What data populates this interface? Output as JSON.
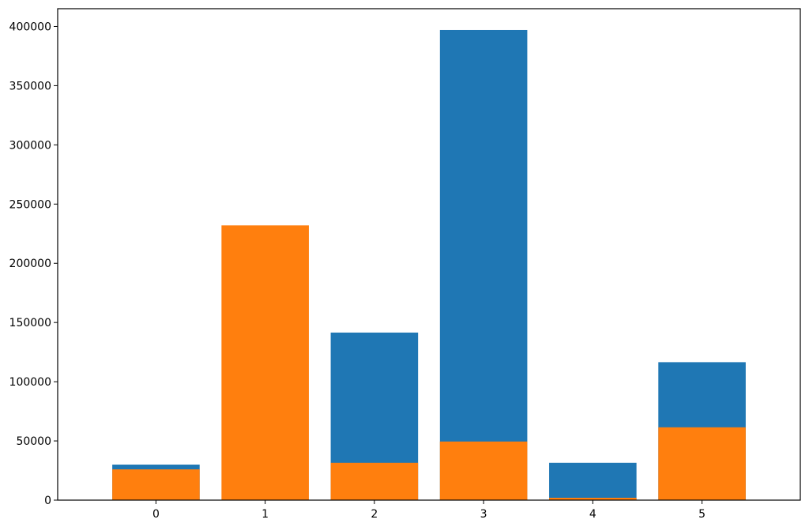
{
  "chart_data": {
    "type": "bar",
    "categories": [
      "0",
      "1",
      "2",
      "3",
      "4",
      "5"
    ],
    "series": [
      {
        "values": [
          30000,
          0,
          141500,
          397000,
          31500,
          116500
        ],
        "color": "#1f77b4"
      },
      {
        "values": [
          26000,
          232000,
          31500,
          49500,
          2000,
          61500
        ],
        "color": "#ff7f0e"
      }
    ],
    "overlay": true,
    "ylim": [
      0,
      415000
    ],
    "yticks": [
      0,
      50000,
      100000,
      150000,
      200000,
      250000,
      300000,
      350000,
      400000
    ],
    "ytick_labels": [
      "0",
      "50000",
      "100000",
      "150000",
      "200000",
      "250000",
      "300000",
      "350000",
      "400000"
    ],
    "title": "",
    "xlabel": "",
    "ylabel": "",
    "grid": false,
    "legend": false
  }
}
